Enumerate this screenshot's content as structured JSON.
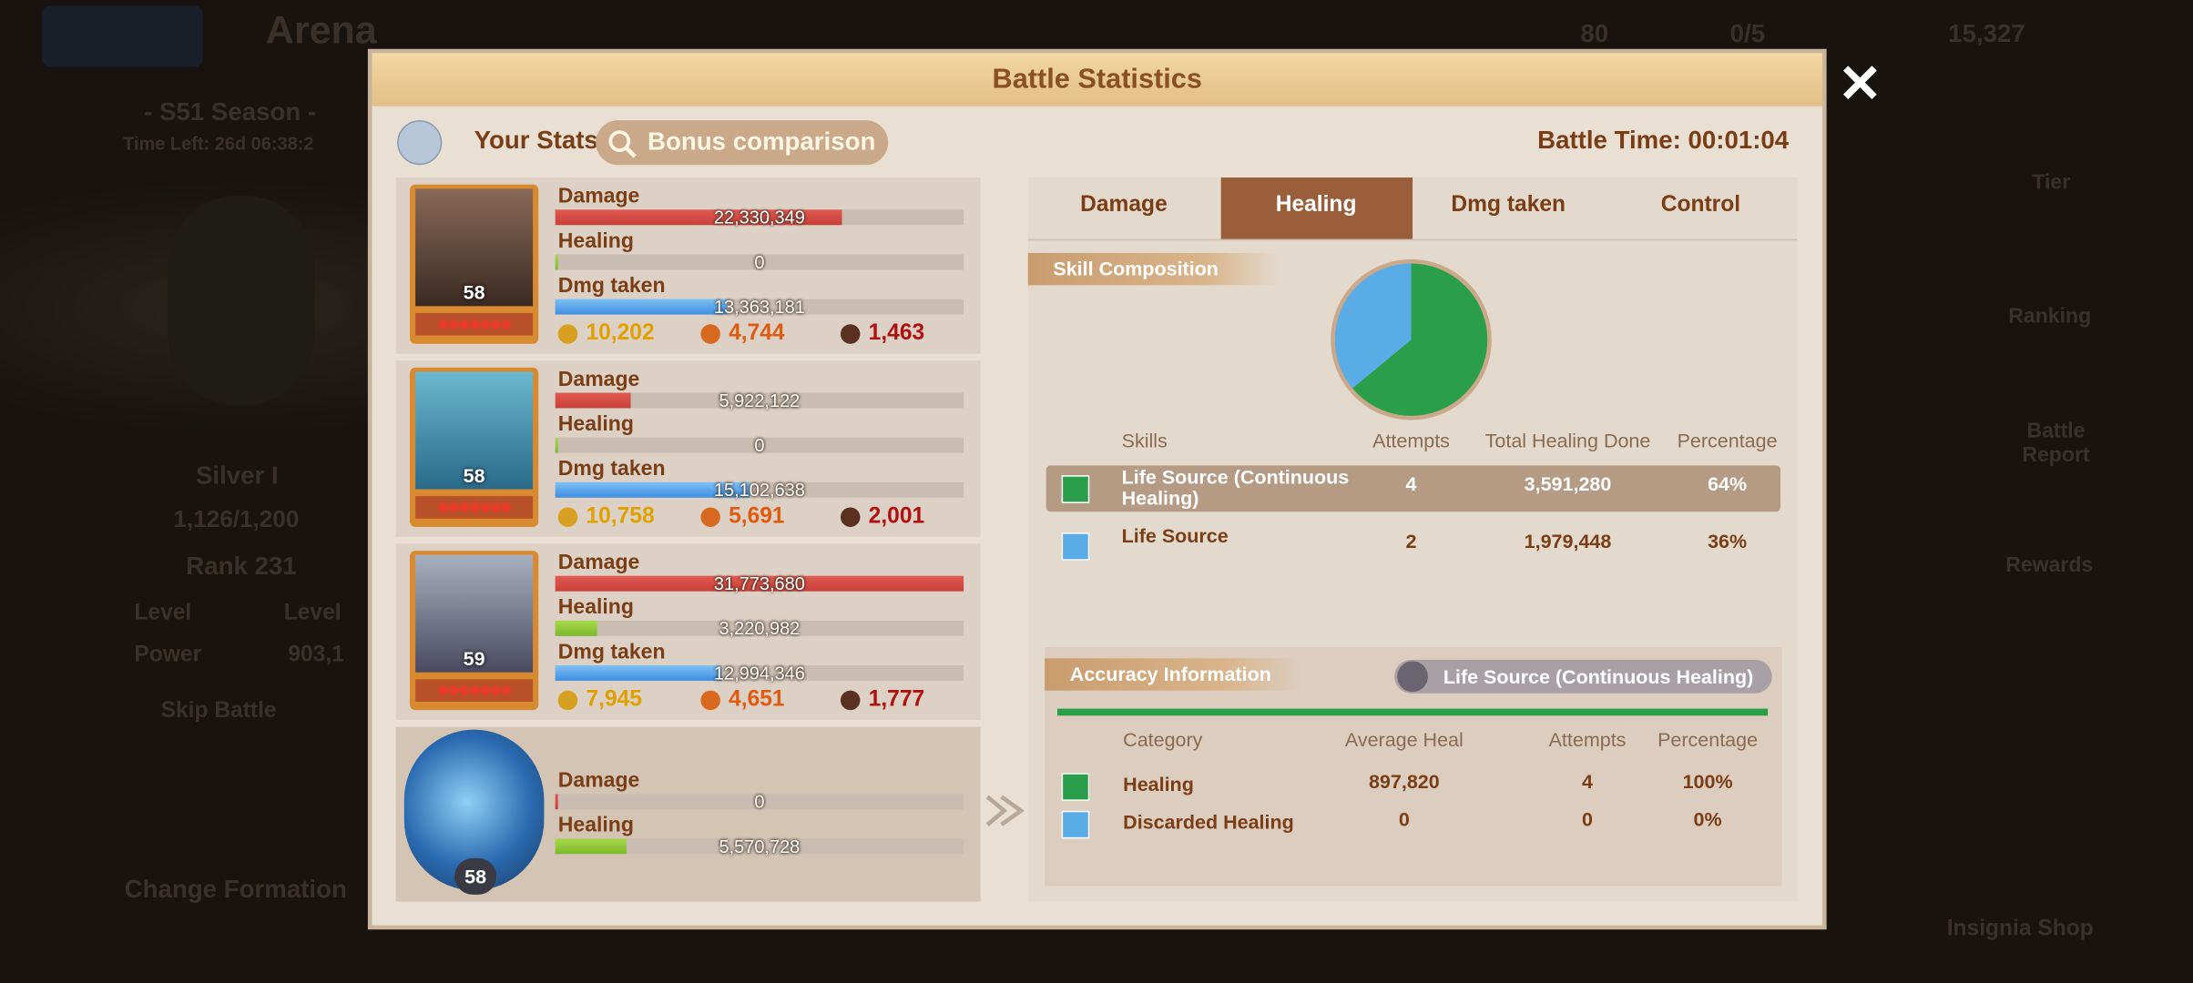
{
  "background": {
    "title": "Arena",
    "season": "- S51 Season -",
    "time_left": "Time Left: 26d 06:38:2",
    "tier": "Silver I",
    "progress": "1,126/1,200",
    "rank": "Rank 231",
    "level_label": "Level",
    "level_value": "Level",
    "power_label": "Power",
    "power_value": "903,1",
    "skip_battle": "Skip Battle",
    "change_formation": "Change Formation",
    "currency": [
      "80",
      "0/5",
      "15,327"
    ],
    "side_menu": [
      "Tier",
      "Ranking",
      "Battle Report",
      "Rewards",
      "Insignia Shop"
    ]
  },
  "dialog": {
    "title": "Battle Statistics",
    "your_stats": "Your Stats",
    "bonus_comparison": "Bonus comparison",
    "battle_time": "Battle Time: 00:01:04"
  },
  "heroes": [
    {
      "level": 58,
      "stats": [
        {
          "label": "Damage",
          "value": "22,330,349"
        },
        {
          "label": "Healing",
          "value": "0"
        },
        {
          "label": "Dmg taken",
          "value": "13,363,181"
        }
      ],
      "counters": [
        "10,202",
        "4,744",
        "1,463"
      ]
    },
    {
      "level": 58,
      "stats": [
        {
          "label": "Damage",
          "value": "5,922,122"
        },
        {
          "label": "Healing",
          "value": "0"
        },
        {
          "label": "Dmg taken",
          "value": "15,102,638"
        }
      ],
      "counters": [
        "10,758",
        "5,691",
        "2,001"
      ]
    },
    {
      "level": 59,
      "stats": [
        {
          "label": "Damage",
          "value": "31,773,680"
        },
        {
          "label": "Healing",
          "value": "3,220,982"
        },
        {
          "label": "Dmg taken",
          "value": "12,994,346"
        }
      ],
      "counters": [
        "7,945",
        "4,651",
        "1,777"
      ]
    },
    {
      "level": 58,
      "stats": [
        {
          "label": "Damage",
          "value": "0"
        },
        {
          "label": "Healing",
          "value": "5,570,728"
        }
      ]
    }
  ],
  "tabs": [
    "Damage",
    "Healing",
    "Dmg taken",
    "Control"
  ],
  "active_tab": 1,
  "skill_composition": {
    "title": "Skill Composition",
    "columns": [
      "Skills",
      "Attempts",
      "Total Healing Done",
      "Percentage"
    ],
    "rows": [
      {
        "name": "Life Source (Continuous Healing)",
        "attempts": 4,
        "total": "3,591,280",
        "percentage": "64%",
        "color": "#2a9e4a"
      },
      {
        "name": "Life Source",
        "attempts": 2,
        "total": "1,979,448",
        "percentage": "36%",
        "color": "#5aace6"
      }
    ]
  },
  "accuracy": {
    "title": "Accuracy Information",
    "selected_skill": "Life Source (Continuous Healing)",
    "columns": [
      "Category",
      "Average Heal",
      "Attempts",
      "Percentage"
    ],
    "rows": [
      {
        "name": "Healing",
        "average": "897,820",
        "attempts": 4,
        "percentage": "100%",
        "color": "#2a9e4a"
      },
      {
        "name": "Discarded Healing",
        "average": "0",
        "attempts": 0,
        "percentage": "0%",
        "color": "#5aace6"
      }
    ]
  }
}
